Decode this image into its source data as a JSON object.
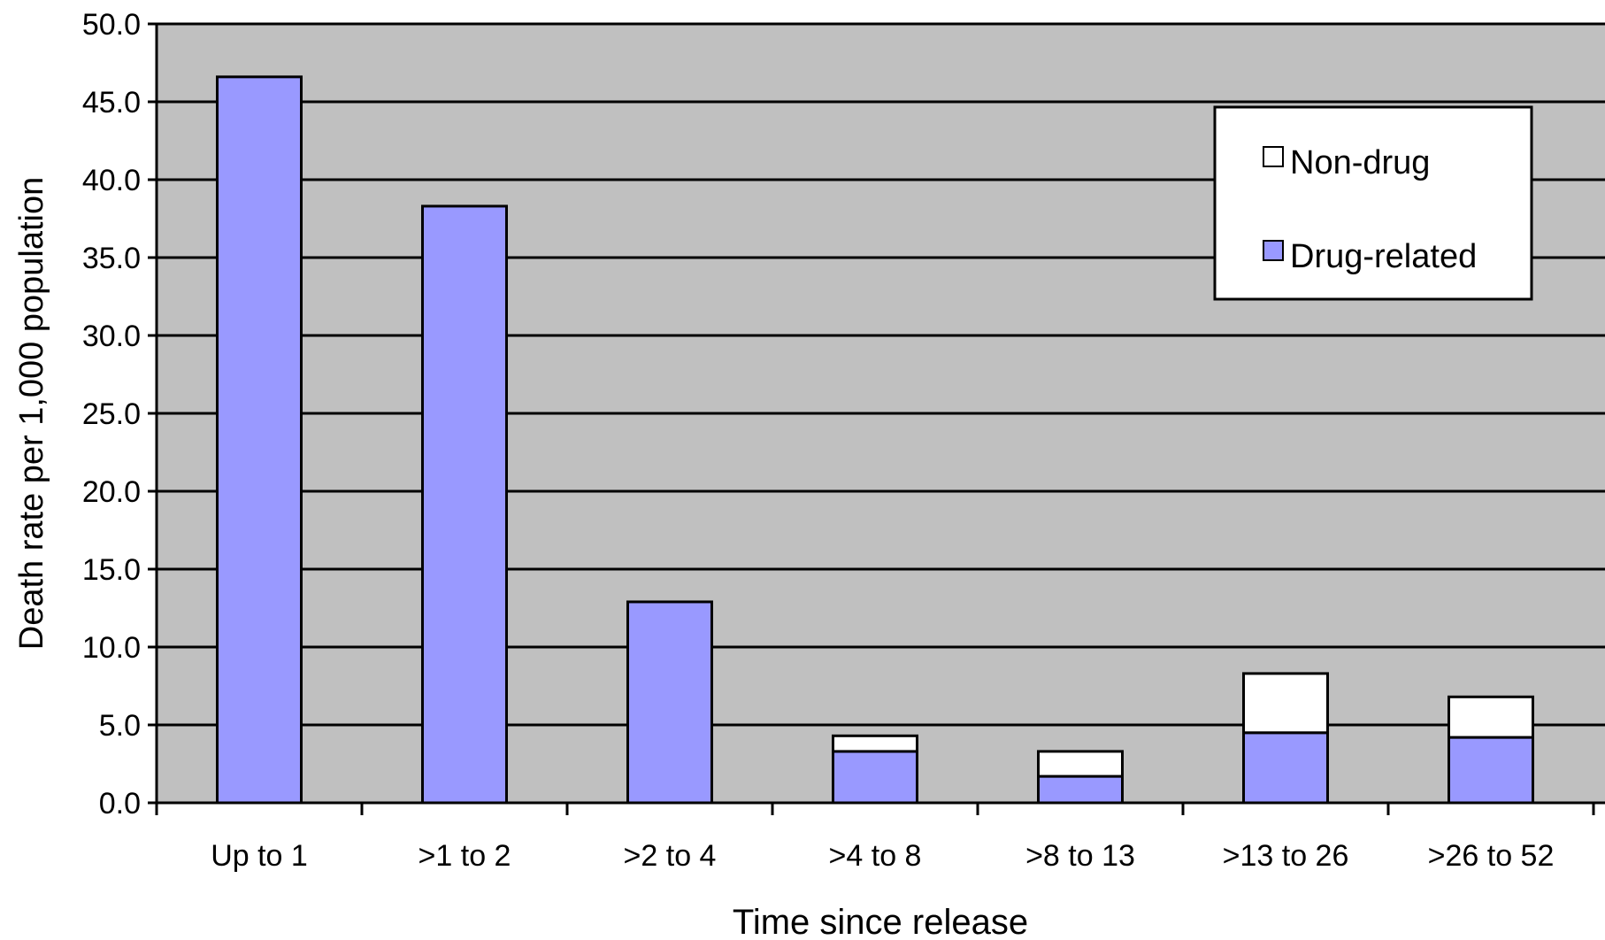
{
  "chart_data": {
    "type": "bar",
    "stacked": true,
    "xlabel": "Time since release",
    "ylabel": "Death rate per 1,000 population",
    "ylim": [
      0,
      50
    ],
    "ytick_labels": [
      "0.0",
      "5.0",
      "10.0",
      "15.0",
      "20.0",
      "25.0",
      "30.0",
      "35.0",
      "40.0",
      "45.0",
      "50.0"
    ],
    "grid": true,
    "legend_position": "top-right",
    "categories": [
      "Up to 1",
      ">1 to 2",
      ">2 to 4",
      ">4 to 8",
      ">8 to 13",
      ">13 to 26",
      ">26 to 52"
    ],
    "series": [
      {
        "name": "Drug-related",
        "color": "#9999ff",
        "values": [
          46.6,
          38.3,
          12.9,
          3.3,
          1.7,
          4.5,
          4.2
        ]
      },
      {
        "name": "Non-drug",
        "color": "#ffffff",
        "values": [
          0,
          0,
          0,
          1.0,
          1.6,
          3.8,
          2.6
        ]
      }
    ],
    "legend_order": [
      "Non-drug",
      "Drug-related"
    ],
    "plot_background": "#c0c0c0"
  }
}
